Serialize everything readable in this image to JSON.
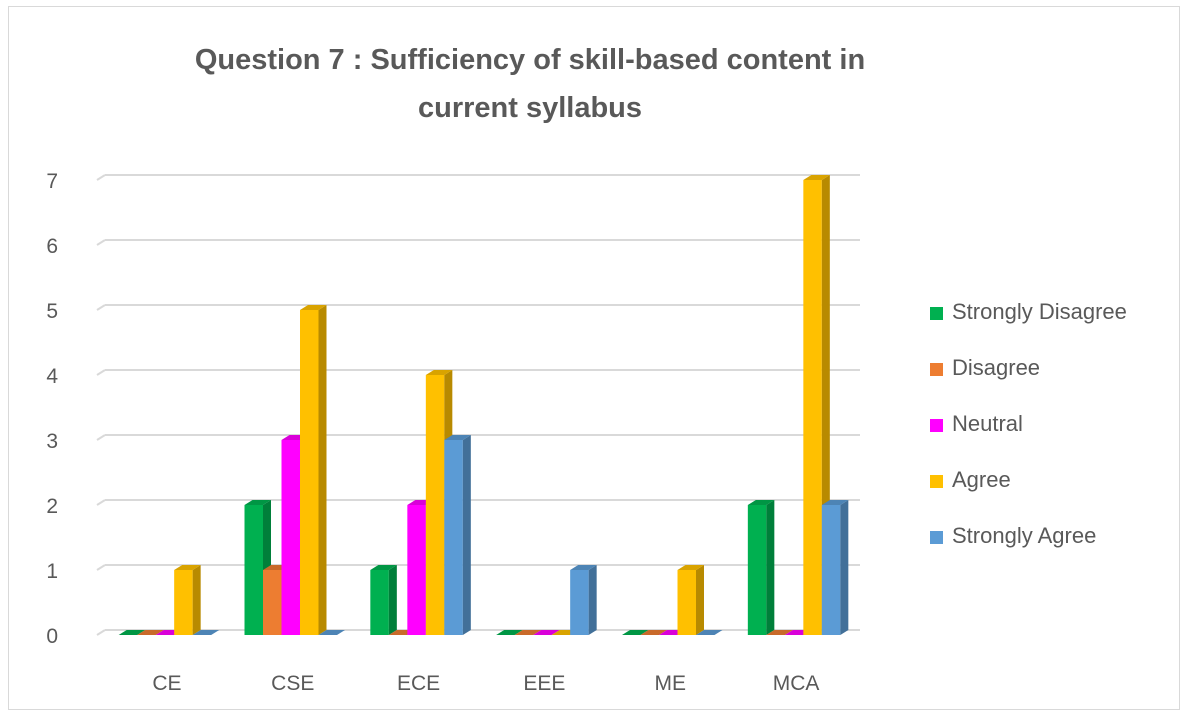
{
  "chart_data": {
    "type": "bar",
    "title": "Question 7 : Sufficiency of skill-based content in current syllabus",
    "categories": [
      "CE",
      "CSE",
      "ECE",
      "EEE",
      "ME",
      "MCA"
    ],
    "series": [
      {
        "name": "Strongly Disagree",
        "color": "#00b050",
        "values": [
          0,
          2,
          1,
          0,
          0,
          2
        ]
      },
      {
        "name": "Disagree",
        "color": "#ed7d31",
        "values": [
          0,
          1,
          0,
          0,
          0,
          0
        ]
      },
      {
        "name": "Neutral",
        "color": "#ff00ff",
        "values": [
          0,
          3,
          2,
          0,
          0,
          0
        ]
      },
      {
        "name": "Agree",
        "color": "#ffc000",
        "values": [
          1,
          5,
          4,
          0,
          1,
          7
        ]
      },
      {
        "name": "Strongly Agree",
        "color": "#5b9bd5",
        "values": [
          0,
          0,
          3,
          1,
          0,
          2
        ]
      }
    ],
    "ylim": [
      0,
      7
    ],
    "yticks": [
      "0",
      "1",
      "2",
      "3",
      "4",
      "5",
      "6",
      "7"
    ],
    "grid": true,
    "legend_position": "right",
    "style": "3d-clustered-column"
  }
}
